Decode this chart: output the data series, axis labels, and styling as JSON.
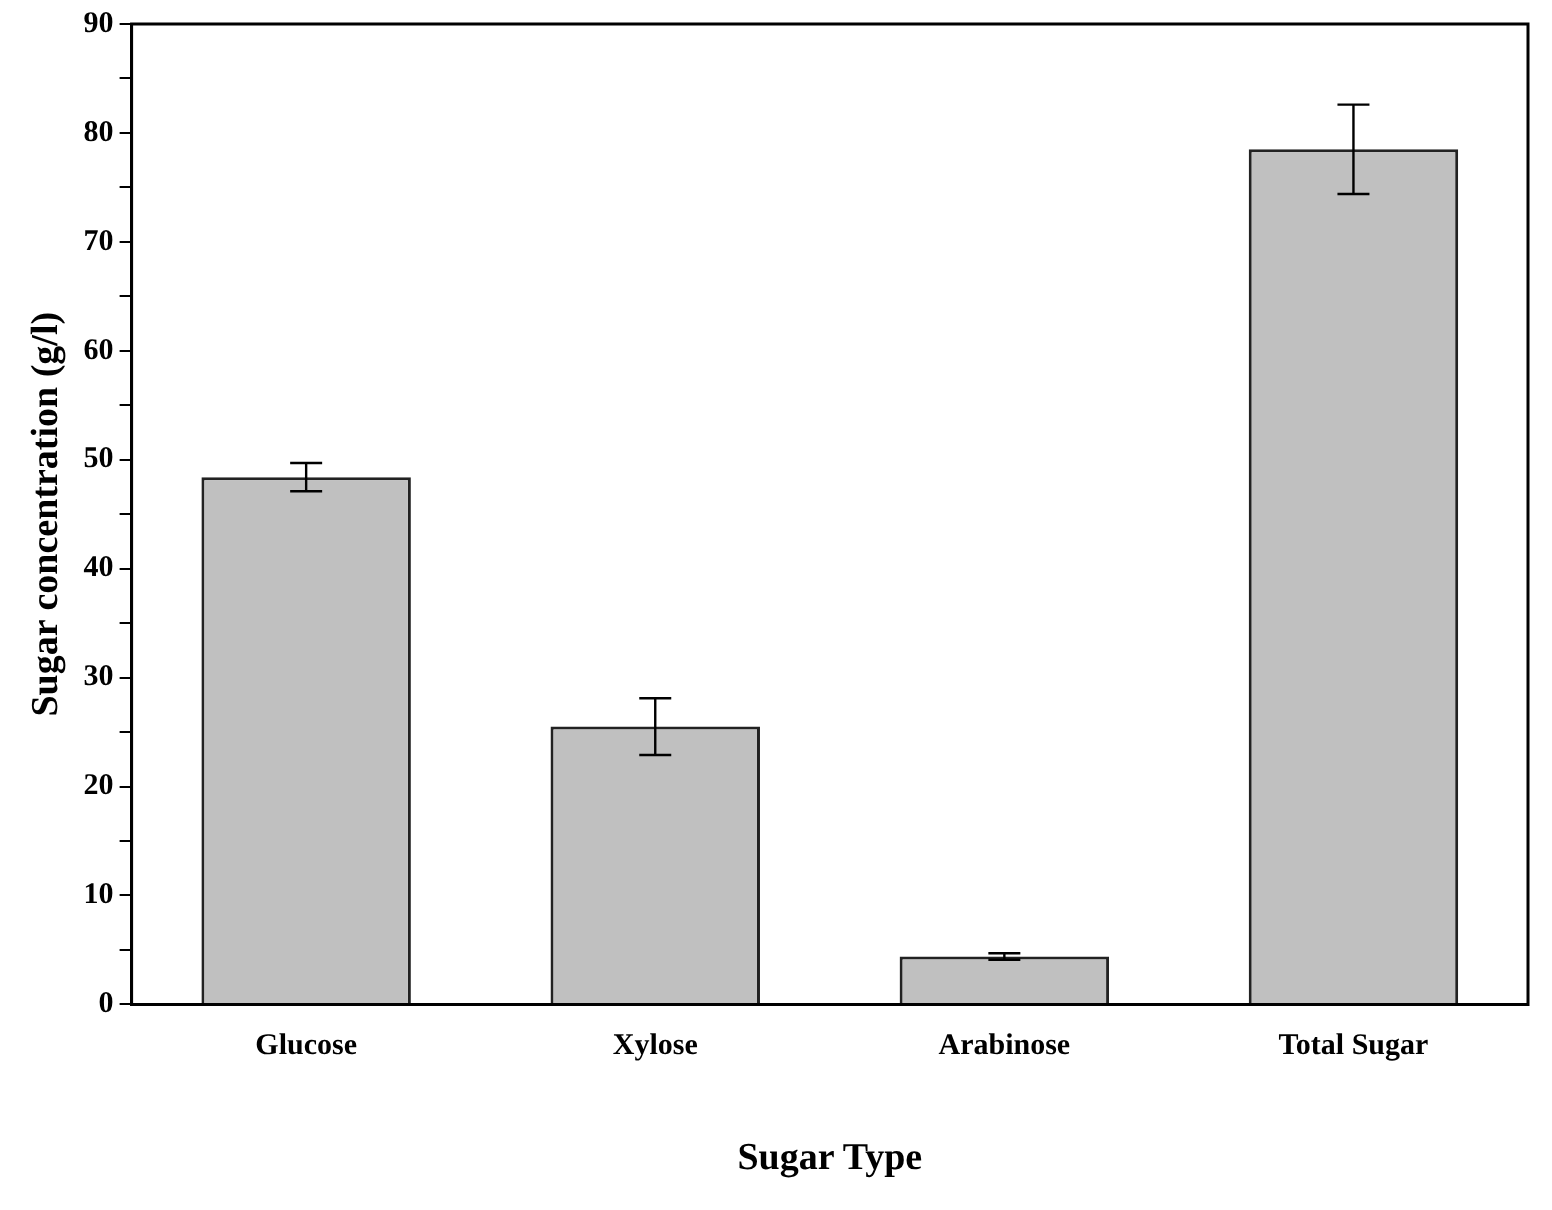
{
  "chart_data": {
    "type": "bar",
    "xlabel": "Sugar Type",
    "ylabel": "Sugar concentration (g/l)",
    "categories": [
      "Glucose",
      "Xylose",
      "Arabinose",
      "Total Sugar"
    ],
    "values": [
      48.4,
      25.5,
      4.4,
      78.5
    ],
    "errors": [
      1.3,
      2.6,
      0.3,
      4.1
    ],
    "color": "#c0c0c0",
    "ylim": [
      0,
      90
    ],
    "yticks": [
      0,
      {
        "value": 5,
        "label": null
      },
      10,
      {
        "value": 15,
        "label": null
      },
      20,
      {
        "value": 25,
        "label": null
      },
      30,
      {
        "value": 35,
        "label": null
      },
      40,
      {
        "value": 45,
        "label": null
      },
      50,
      {
        "value": 55,
        "label": null
      },
      60,
      {
        "value": 65,
        "label": null
      },
      70,
      {
        "value": 75,
        "label": null
      },
      80,
      {
        "value": 85,
        "label": null
      },
      90
    ],
    "grid": false,
    "legend": false
  }
}
